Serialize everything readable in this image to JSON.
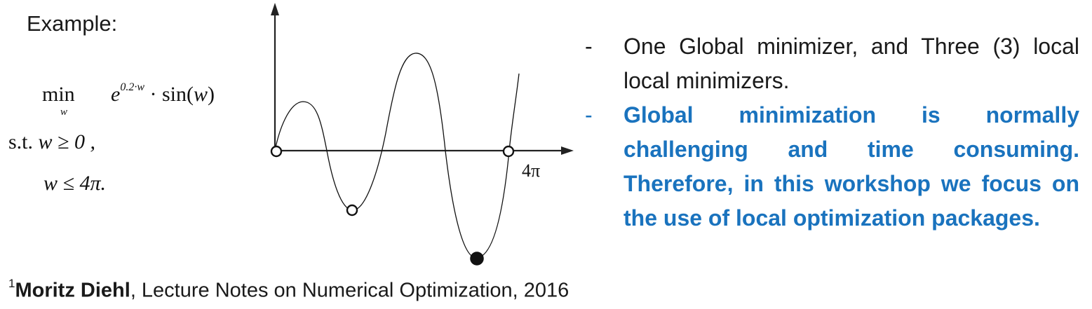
{
  "example_label": "Example:",
  "problem": {
    "min_word": "min",
    "min_subscript": "w",
    "objective_base": "e",
    "objective_exponent": "0.2·w",
    "objective_rest": " · sin(",
    "objective_var": "w",
    "objective_close": ")",
    "st_label": "s.t. ",
    "constraint1": "w ≥ 0 ,",
    "constraint2": "w ≤ 4π."
  },
  "plot": {
    "x_tick_label": "4π",
    "markers": [
      "open-circle",
      "open-circle",
      "open-circle",
      "filled-circle"
    ]
  },
  "bullets": [
    {
      "dash": "-",
      "text": "One Global minimizer, and Three (3) local local minimizers."
    },
    {
      "dash": "-",
      "text": "Global minimization is normally challenging and time consuming. Therefore, in this workshop we focus on the use of local optimization packages."
    }
  ],
  "footnote": {
    "marker": "1",
    "author": "Moritz Diehl",
    "rest": ", Lecture Notes on Numerical Optimization, 2016"
  },
  "colors": {
    "highlight": "#1a73be",
    "text": "#1a1a1a"
  }
}
